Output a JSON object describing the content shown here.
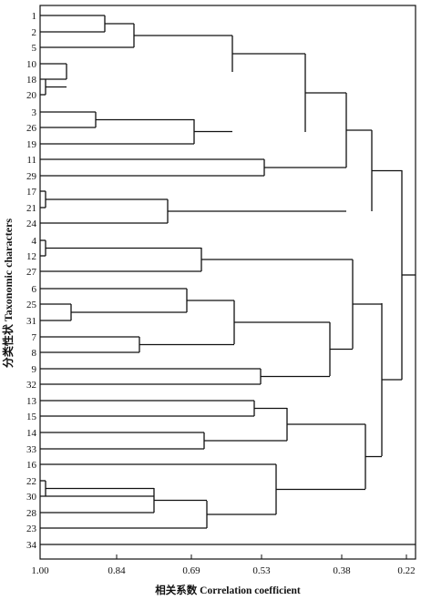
{
  "diagram": {
    "type": "dendrogram",
    "y_axis_label": "分类性状 Taxonomic characters",
    "x_axis_label": "相关系数  Correlation coefficient",
    "x_ticks": [
      "1.00",
      "0.84",
      "0.69",
      "0.53",
      "0.38",
      "0.22"
    ],
    "leaves": [
      "1",
      "2",
      "5",
      "10",
      "18",
      "20",
      "3",
      "26",
      "19",
      "11",
      "29",
      "17",
      "21",
      "24",
      "4",
      "12",
      "27",
      "6",
      "25",
      "31",
      "7",
      "8",
      "9",
      "32",
      "13",
      "15",
      "14",
      "33",
      "16",
      "22",
      "30",
      "28",
      "23",
      "34"
    ]
  }
}
